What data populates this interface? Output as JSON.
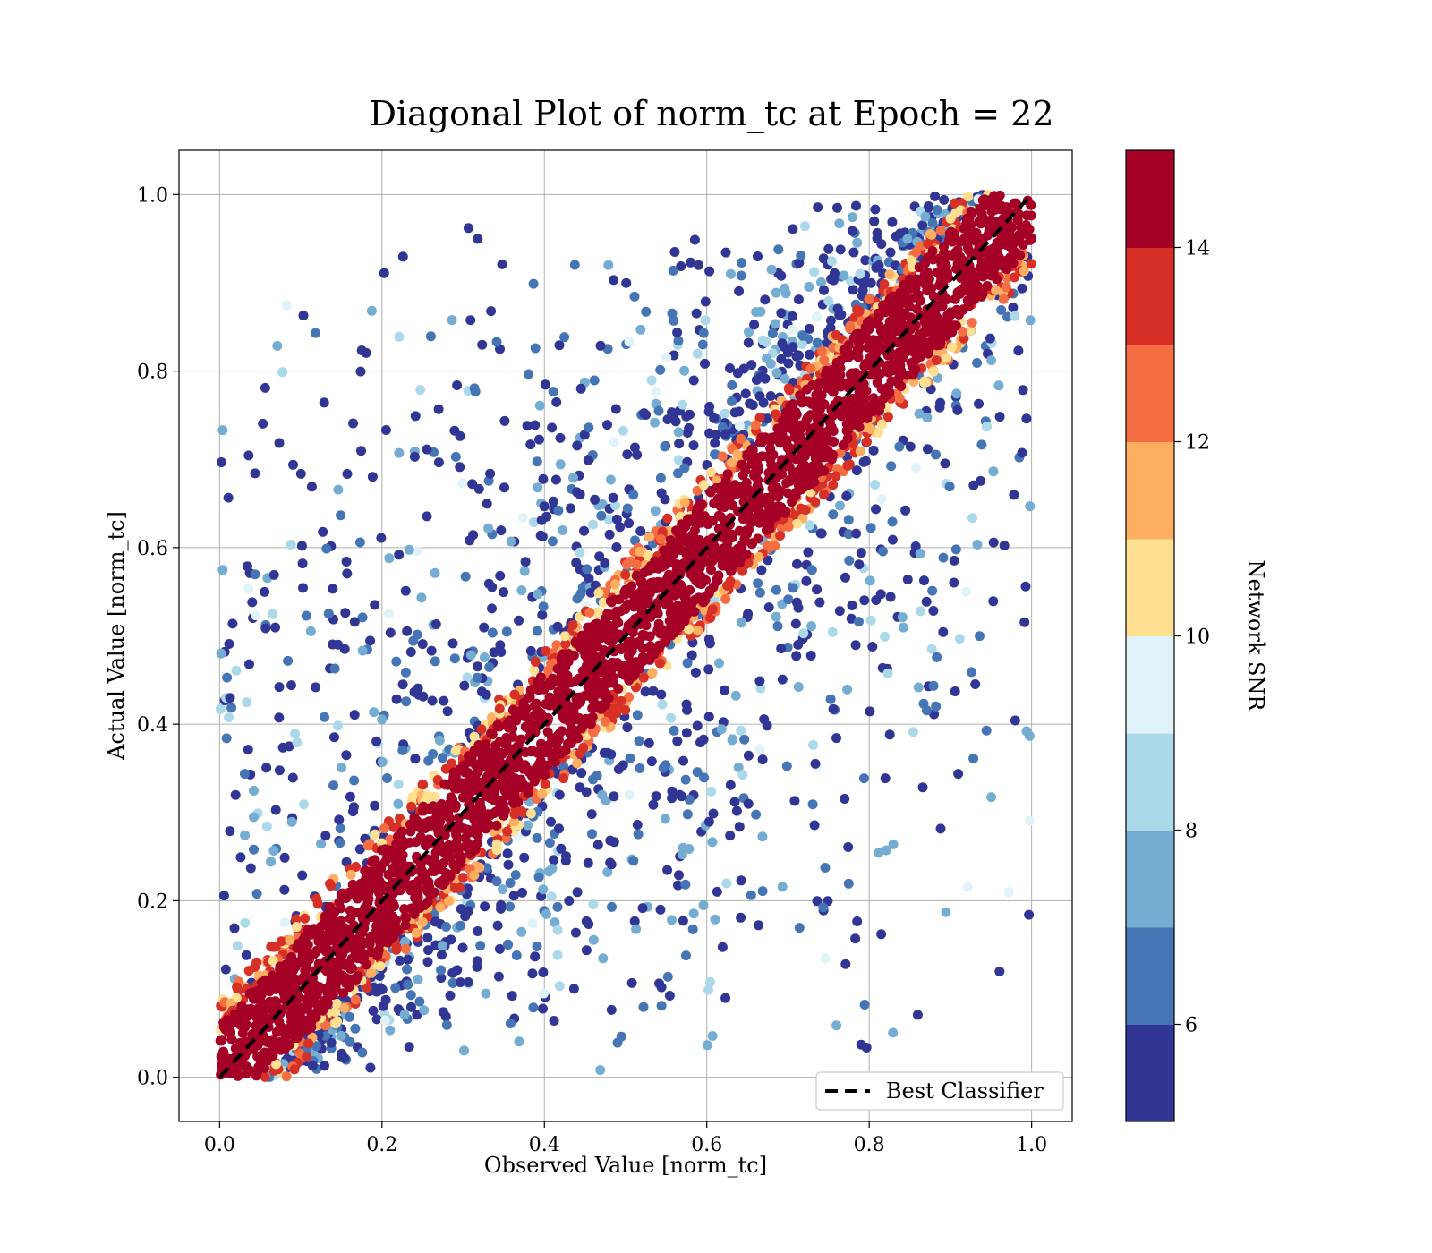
{
  "chart_data": {
    "type": "scatter",
    "title": "Diagonal Plot of norm_tc at Epoch = 22",
    "xlabel": "Observed Value [norm_tc]",
    "ylabel": "Actual Value [norm_tc]",
    "xlim": [
      -0.05,
      1.05
    ],
    "ylim": [
      -0.05,
      1.05
    ],
    "xticks": [
      "0.0",
      "0.2",
      "0.4",
      "0.6",
      "0.8",
      "1.0"
    ],
    "yticks": [
      "0.0",
      "0.2",
      "0.4",
      "0.6",
      "0.8",
      "1.0"
    ],
    "grid": true,
    "reference_line": {
      "name": "Best Classifier",
      "x": [
        0,
        1
      ],
      "y": [
        0,
        1
      ],
      "style": "dashed",
      "color": "#000000"
    },
    "legend": {
      "position": "lower-right",
      "entries": [
        "Best Classifier"
      ]
    },
    "points_description_note": "",
    "band": {
      "core_halfwidth": 0.06,
      "mid_halfwidth": 0.085,
      "scatter_upper_region": "points spread above diagonal with low SNR",
      "scatter_lower_region": "points spread below diagonal with low SNR"
    },
    "colorbar": {
      "label": "Network SNR",
      "range": [
        5,
        15
      ],
      "ticks": [
        "6",
        "8",
        "10",
        "12",
        "14"
      ],
      "tick_values": [
        6,
        8,
        10,
        12,
        14
      ],
      "colors": [
        "#313695",
        "#4575b4",
        "#74add1",
        "#abd9e9",
        "#e0f3f8",
        "#fee090",
        "#fdae61",
        "#f46d43",
        "#d73027",
        "#a50026"
      ]
    }
  }
}
